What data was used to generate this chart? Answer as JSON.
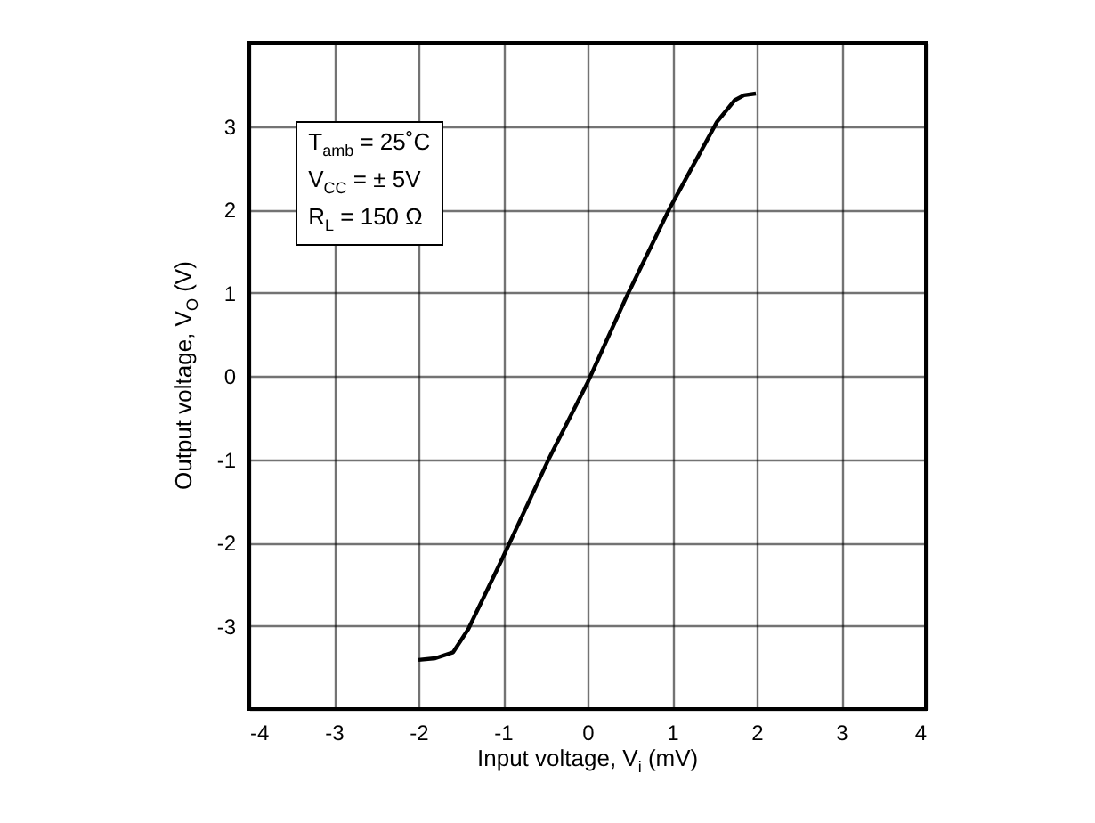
{
  "chart_data": {
    "type": "line",
    "xlabel": "Input voltage, V$_{i}$ (mV)",
    "ylabel": "Output voltage, V$_{O}$ (V)",
    "annotations": [
      "T$_{amb}$ = 25˚C",
      "V$_{CC}$ = ± 5V",
      "R$_{L}$ = 150 Ω"
    ],
    "series": [
      {
        "color": "#000000",
        "x": [
          -2,
          -1.8,
          -1.59,
          -1.41,
          -1.02,
          -0.45,
          0,
          0.46,
          0.97,
          1.53,
          1.74,
          1.85,
          1.99
        ],
        "values": [
          -3.41,
          -3.39,
          -3.32,
          -3.04,
          -2.22,
          -0.98,
          -0.08,
          0.95,
          2.01,
          3.05,
          3.31,
          3.37,
          3.39
        ]
      }
    ],
    "xlim": [
      -4,
      4
    ],
    "xticks": [
      -4,
      -3,
      -2,
      -1,
      0,
      1,
      2,
      3,
      4
    ],
    "ylim": [
      -4,
      4
    ],
    "yticks": [
      {
        "value": -4,
        "label": null
      },
      -3,
      -2,
      -1,
      0,
      1,
      2,
      3,
      {
        "value": 4,
        "label": null
      }
    ],
    "grid": true,
    "marker": "none",
    "line_style": "solid"
  }
}
